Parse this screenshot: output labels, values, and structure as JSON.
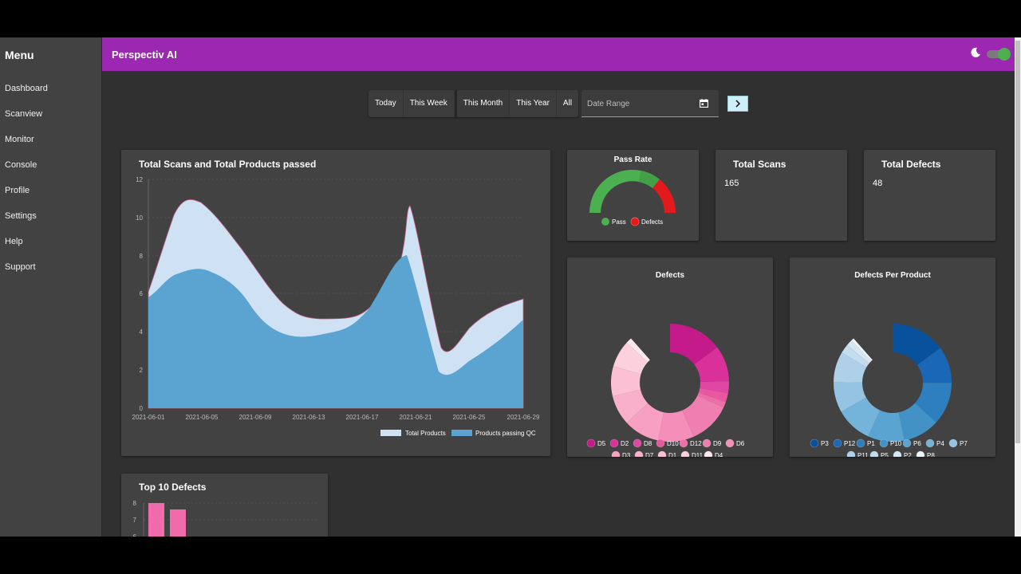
{
  "sidebar": {
    "title": "Menu",
    "items": [
      {
        "label": "Dashboard"
      },
      {
        "label": "Scanview"
      },
      {
        "label": "Monitor"
      },
      {
        "label": "Console"
      },
      {
        "label": "Profile"
      },
      {
        "label": "Settings"
      },
      {
        "label": "Help"
      },
      {
        "label": "Support"
      }
    ]
  },
  "header": {
    "title": "Perspectiv AI",
    "theme_icon": "moon-icon",
    "dark_mode_toggle": true,
    "accent_color": "#9c27b0"
  },
  "filters": {
    "ranges": [
      {
        "label": "Today"
      },
      {
        "label": "This Week"
      },
      {
        "label": "This Month",
        "active": true
      },
      {
        "label": "This Year"
      },
      {
        "label": "All"
      }
    ],
    "date_range_placeholder": "Date Range",
    "calendar_icon": "calendar-icon",
    "go_icon": "chevron-right-icon"
  },
  "cards": {
    "scans_chart_title": "Total Scans and Total Products passed",
    "pass_rate_title": "Pass Rate",
    "total_scans_title": "Total Scans",
    "total_scans_value": "165",
    "total_defects_title": "Total Defects",
    "total_defects_value": "48",
    "defects_title": "Defects",
    "defects_per_product_title": "Defects Per Product",
    "top10_title": "Top 10 Defects"
  },
  "chart_data": [
    {
      "type": "area",
      "title": "Total Scans and Total Products passed",
      "xlabel": "",
      "ylabel": "",
      "ylim": [
        0,
        12
      ],
      "yticks": [
        0,
        2,
        4,
        6,
        8,
        10,
        12
      ],
      "xticks": [
        "2021-06-01",
        "2021-06-05",
        "2021-06-09",
        "2021-06-13",
        "2021-06-17",
        "2021-06-21",
        "2021-06-25",
        "2021-06-29"
      ],
      "x": [
        "2021-06-01",
        "2021-06-03",
        "2021-06-05",
        "2021-06-07",
        "2021-06-09",
        "2021-06-11",
        "2021-06-13",
        "2021-06-15",
        "2021-06-17",
        "2021-06-19",
        "2021-06-21",
        "2021-06-24",
        "2021-06-27",
        "2021-06-29"
      ],
      "series": [
        {
          "name": "Total Products",
          "color": "#cfe2f3",
          "values": [
            6.1,
            9.9,
            10.8,
            9.0,
            7.0,
            5.5,
            4.7,
            4.7,
            5.5,
            7.0,
            10.6,
            2.8,
            4.8,
            5.7
          ]
        },
        {
          "name": "Products passing QC",
          "color": "#5ba3d0",
          "values": [
            5.8,
            6.9,
            7.3,
            6.8,
            5.2,
            3.9,
            3.8,
            4.1,
            5.0,
            6.6,
            8.1,
            1.8,
            3.3,
            4.6
          ]
        }
      ],
      "legend_position": "bottom-right",
      "grid": true
    },
    {
      "type": "pie",
      "subtype": "gauge",
      "title": "Pass Rate",
      "categories": [
        "Pass",
        "Defects"
      ],
      "values": [
        117,
        48
      ],
      "colors": [
        "#4caf50",
        "#e31a1c"
      ]
    },
    {
      "type": "pie",
      "subtype": "donut",
      "title": "Defects",
      "categories": [
        "D5",
        "D2",
        "D8",
        "D10",
        "D12",
        "D9",
        "D6",
        "D3",
        "D7",
        "D1",
        "D11",
        "D4"
      ],
      "values": [
        9,
        6,
        2,
        1.5,
        1,
        7,
        6,
        6,
        5,
        5,
        4.5,
        1
      ],
      "colors": [
        "#c51b8a",
        "#d9309a",
        "#e047a4",
        "#e8579f",
        "#ec6fa8",
        "#f07fb1",
        "#f48fb9",
        "#f7a0c1",
        "#f9b0ca",
        "#fbc0d3",
        "#fcd0dd",
        "#fde8ee"
      ]
    },
    {
      "type": "pie",
      "subtype": "donut",
      "title": "Defects Per Product",
      "categories": [
        "P3",
        "P12",
        "P1",
        "P10",
        "P6",
        "P4",
        "P7",
        "P11",
        "P5",
        "P2",
        "P8"
      ],
      "values": [
        9,
        6,
        7,
        6,
        6,
        6,
        5,
        5,
        1.5,
        1,
        0.5
      ],
      "colors": [
        "#08519c",
        "#1a68b5",
        "#2d7fc0",
        "#4292c6",
        "#5aa4d2",
        "#74b3da",
        "#94c4e2",
        "#aed1e8",
        "#c3ddee",
        "#d6e7f3",
        "#eef5fb"
      ]
    },
    {
      "type": "bar",
      "title": "Top 10 Defects",
      "categories": [
        "",
        ""
      ],
      "values": [
        8,
        7.6
      ],
      "yticks_visible": [
        8,
        7
      ],
      "color": "#f06bab"
    }
  ]
}
